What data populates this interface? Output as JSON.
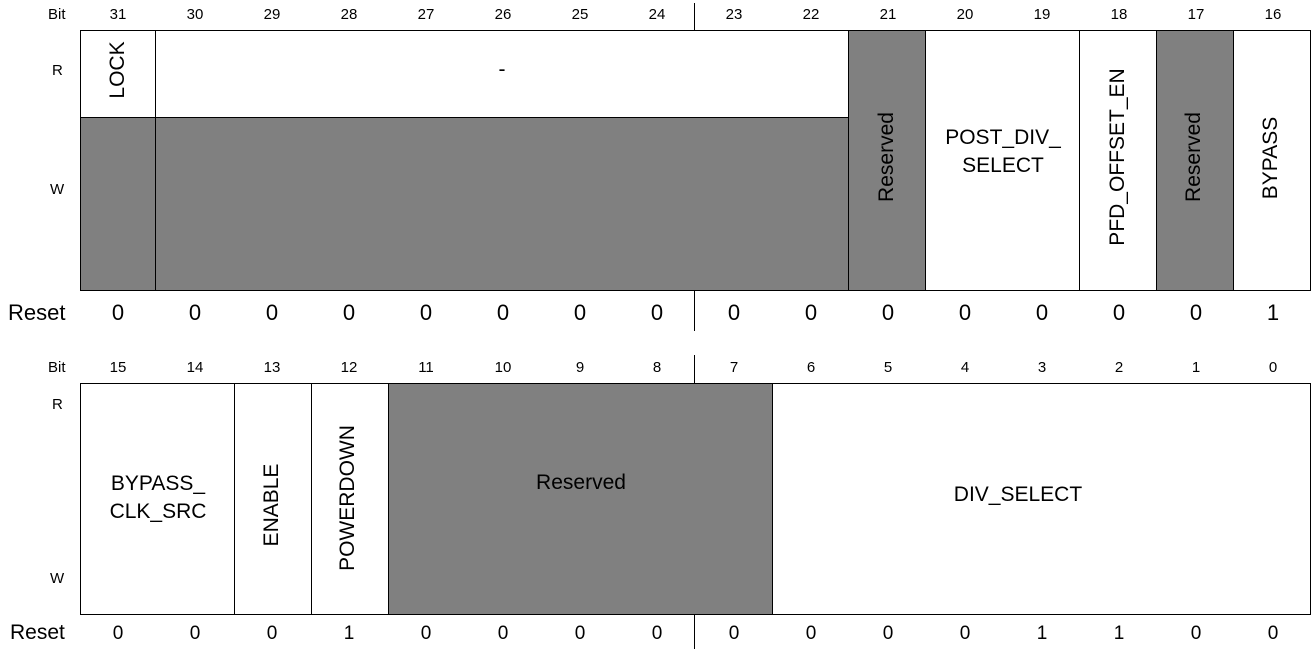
{
  "upper": {
    "bit_label": "Bit",
    "bits": [
      "31",
      "30",
      "29",
      "28",
      "27",
      "26",
      "25",
      "24",
      "23",
      "22",
      "21",
      "20",
      "19",
      "18",
      "17",
      "16"
    ],
    "read_label": "R",
    "write_label": "W",
    "reset_label": "Reset",
    "reset_values": [
      "0",
      "0",
      "0",
      "0",
      "0",
      "0",
      "0",
      "0",
      "0",
      "0",
      "0",
      "0",
      "0",
      "0",
      "0",
      "1"
    ],
    "fields": {
      "lock": "LOCK",
      "dash": "-",
      "reserved_21": "Reserved",
      "post_div_select_line1": "POST_DIV_",
      "post_div_select_line2": "SELECT",
      "pfd_offset_en": "PFD_OFFSET_EN",
      "reserved_17": "Reserved",
      "bypass": "BYPASS"
    }
  },
  "lower": {
    "bit_label": "Bit",
    "bits": [
      "15",
      "14",
      "13",
      "12",
      "11",
      "10",
      "9",
      "8",
      "7",
      "6",
      "5",
      "4",
      "3",
      "2",
      "1",
      "0"
    ],
    "read_label": "R",
    "write_label": "W",
    "reset_label": "Reset",
    "reset_values": [
      "0",
      "0",
      "0",
      "1",
      "0",
      "0",
      "0",
      "0",
      "0",
      "0",
      "0",
      "0",
      "1",
      "1",
      "0",
      "0"
    ],
    "fields": {
      "bypass_clk_src_line1": "BYPASS_",
      "bypass_clk_src_line2": "CLK_SRC",
      "enable": "ENABLE",
      "powerdown": "POWERDOWN",
      "reserved": "Reserved",
      "div_select": "DIV_SELECT"
    }
  },
  "colors": {
    "reserved_fill": "#808080",
    "field_fill": "#ffffff",
    "line": "#000000"
  }
}
